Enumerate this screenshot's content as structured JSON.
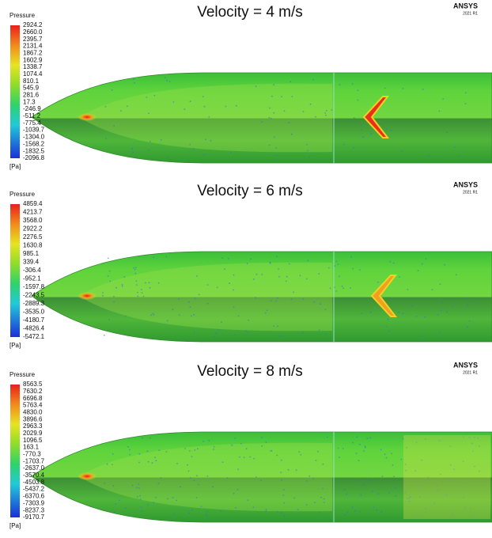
{
  "panels": [
    {
      "title": "Velocity = 4 m/s",
      "legend_title": "Pressure",
      "brand": "ANSYS",
      "version": "2021 R1",
      "unit": "[Pa]",
      "ticks": [
        "2924.2",
        "2660.0",
        "2395.7",
        "2131.4",
        "1867.2",
        "1602.9",
        "1338.7",
        "1074.4",
        "810.1",
        "545.9",
        "281.6",
        "17.3",
        "-246.9",
        "-511.2",
        "-775.4",
        "-1039.7",
        "-1304.0",
        "-1568.2",
        "-1832.5",
        "-2096.8"
      ]
    },
    {
      "title": "Velocity = 6 m/s",
      "legend_title": "Pressure",
      "brand": "ANSYS",
      "version": "2021 R1",
      "unit": "[Pa]",
      "ticks": [
        "4859.4",
        "4213.7",
        "3568.0",
        "2922.2",
        "2276.5",
        "1630.8",
        "985.1",
        "339.4",
        "-306.4",
        "-952.1",
        "-1597.8",
        "-2243.5",
        "-2889.3",
        "-3535.0",
        "-4180.7",
        "-4826.4",
        "-5472.1"
      ]
    },
    {
      "title": "Velocity = 8 m/s",
      "legend_title": "Pressure",
      "brand": "ANSYS",
      "version": "2021 R1",
      "unit": "[Pa]",
      "ticks": [
        "8563.5",
        "7630.2",
        "6696.8",
        "5763.4",
        "4830.0",
        "3896.6",
        "2963.3",
        "2029.9",
        "1096.5",
        "163.1",
        "-770.3",
        "-1703.7",
        "-2637.0",
        "-3570.4",
        "-4503.8",
        "-5437.2",
        "-6370.6",
        "-7303.9",
        "-8237.3",
        "-9170.7"
      ]
    }
  ]
}
